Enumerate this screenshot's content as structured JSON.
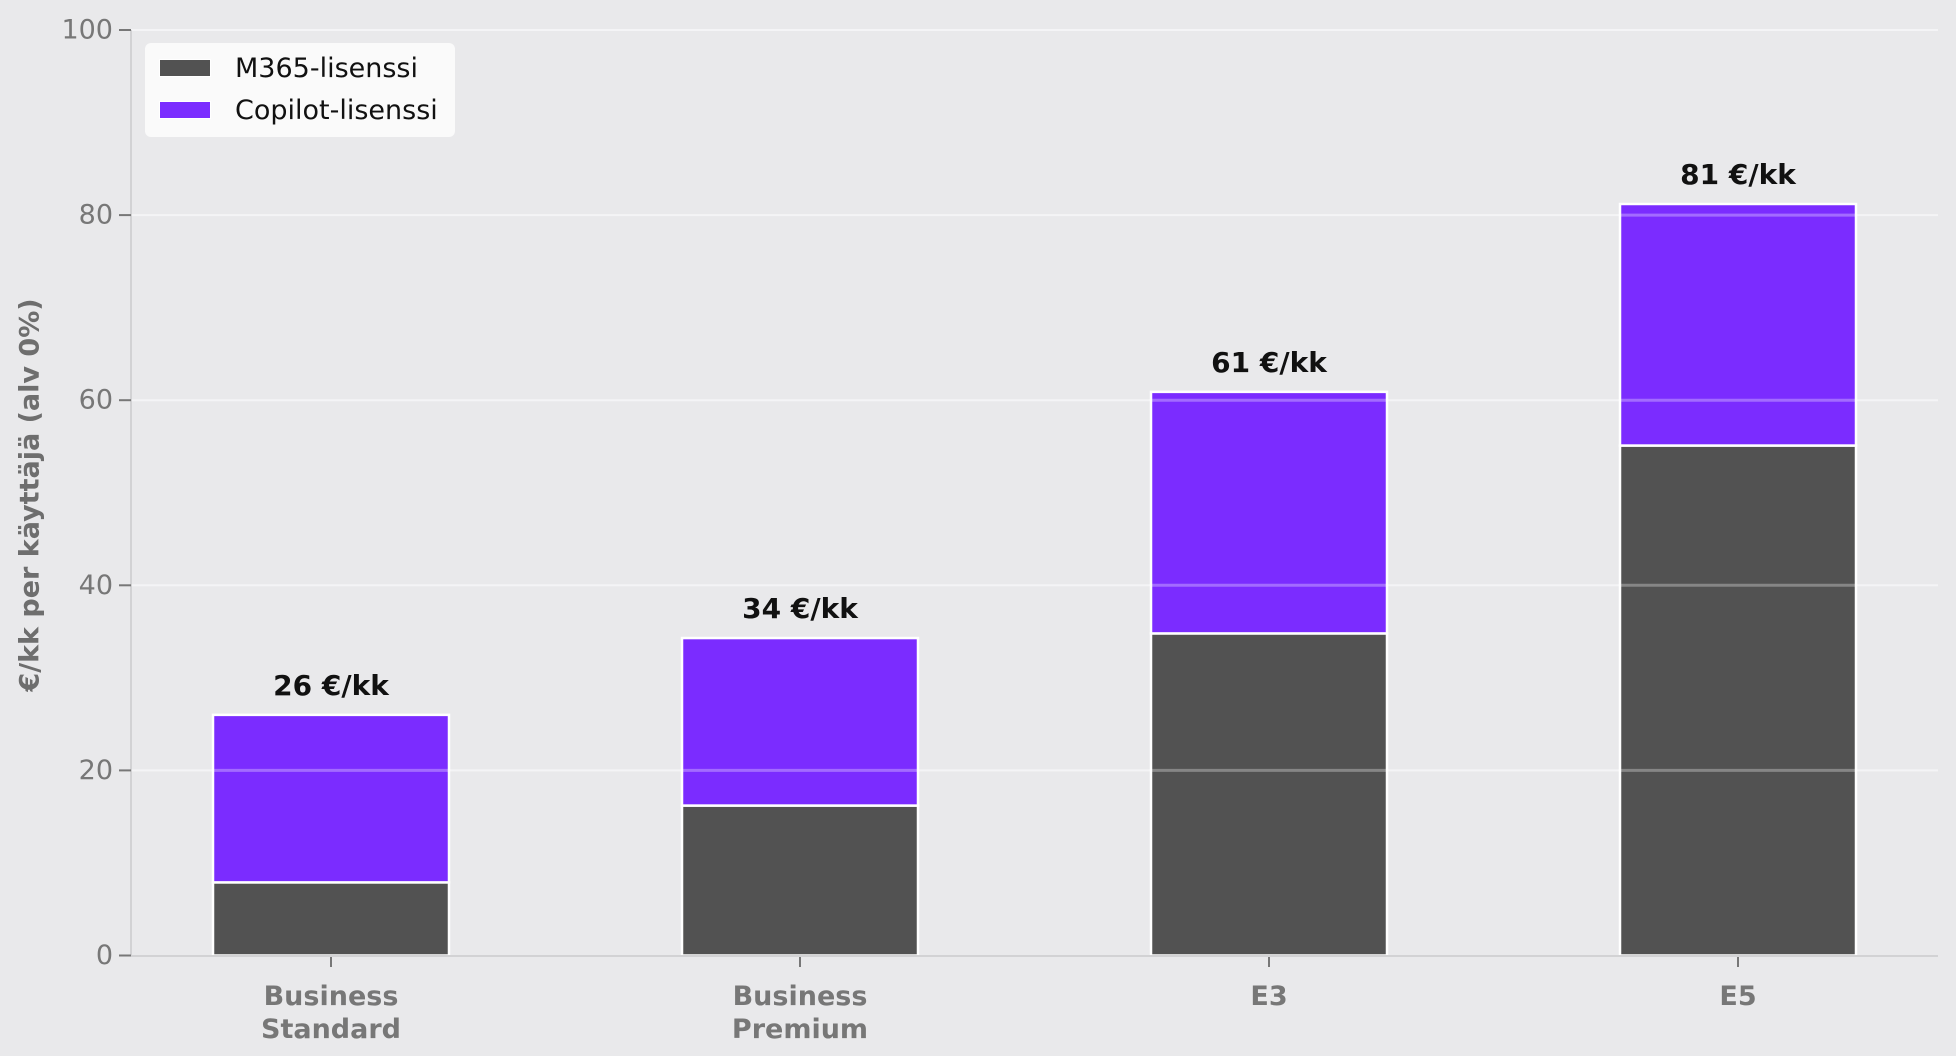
{
  "chart_data": {
    "type": "bar",
    "stacked": true,
    "title": "",
    "xlabel": "",
    "ylabel": "€/kk per käyttäjä (alv 0%)",
    "ylim": [
      0,
      100
    ],
    "yticks": [
      "0",
      "20",
      "40",
      "60",
      "80",
      "100"
    ],
    "categories": [
      "Business Standard",
      "Business Premium",
      "E3",
      "E5"
    ],
    "category_lines": [
      [
        "Business",
        "Standard"
      ],
      [
        "Business",
        "Premium"
      ],
      [
        "E3"
      ],
      [
        "E5"
      ]
    ],
    "series": [
      {
        "name": "M365-lisenssi",
        "color": "#525252",
        "values": [
          7.9,
          16.2,
          34.8,
          55.1
        ]
      },
      {
        "name": "Copilot-lisenssi",
        "color": "#7B2CFF",
        "values": [
          18.1,
          18.1,
          26.1,
          26.1
        ]
      }
    ],
    "totals_labels": [
      "26 €/kk",
      "34 €/kk",
      "61 €/kk",
      "81 €/kk"
    ],
    "grid": "y",
    "legend_position": "upper left"
  },
  "legend": {
    "items": [
      {
        "label": "M365-lisenssi",
        "color": "#525252"
      },
      {
        "label": "Copilot-lisenssi",
        "color": "#7B2CFF"
      }
    ]
  }
}
